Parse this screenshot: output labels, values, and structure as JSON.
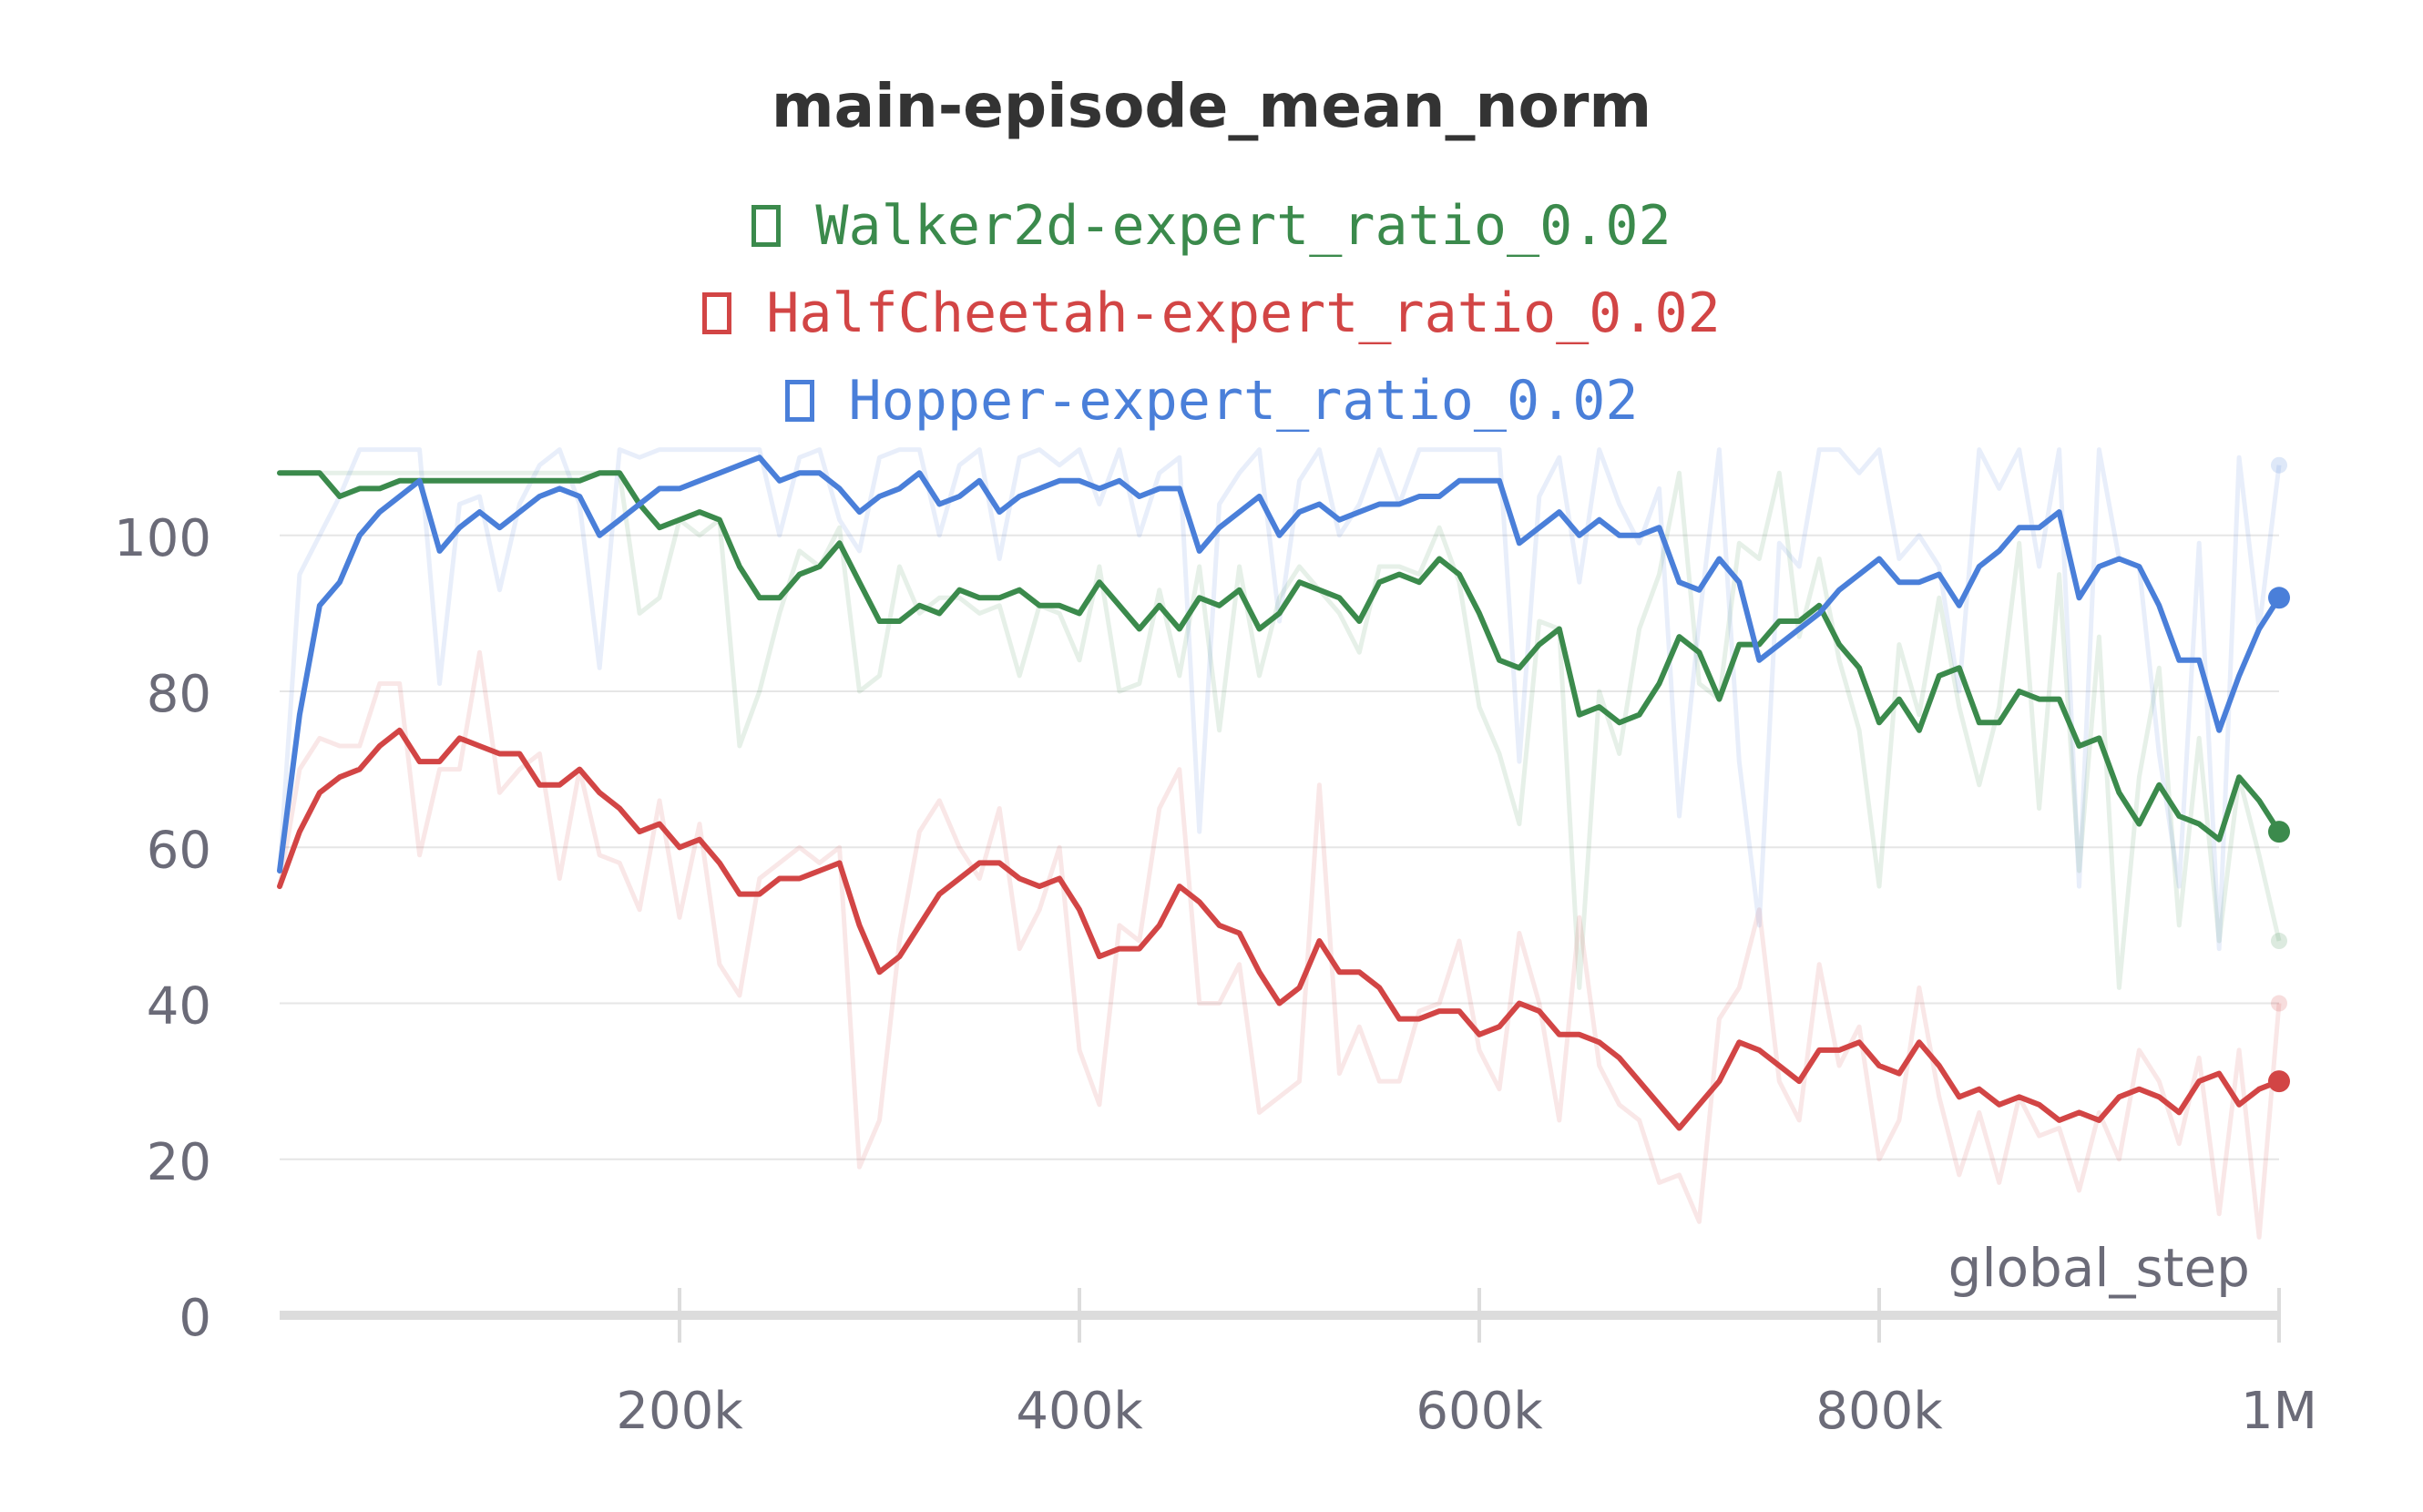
{
  "chart_data": {
    "type": "line",
    "title": "main-episode_mean_norm",
    "xlabel": "global_step",
    "ylabel": "",
    "xlim": [
      0,
      1000000
    ],
    "ylim": [
      0,
      110
    ],
    "x_ticks": [
      "200k",
      "400k",
      "600k",
      "800k",
      "1M"
    ],
    "x_tick_values": [
      200000,
      400000,
      600000,
      800000,
      1000000
    ],
    "y_ticks": [
      "0",
      "20",
      "40",
      "60",
      "80",
      "100"
    ],
    "y_tick_values": [
      0,
      20,
      40,
      60,
      80,
      100
    ],
    "grid": true,
    "legend_position": "top-center",
    "series": [
      {
        "name": "Walker2d-expert_ratio_0.02",
        "color": "#3b8a4c",
        "x": [
          0,
          10000,
          20000,
          30000,
          40000,
          50000,
          60000,
          70000,
          80000,
          90000,
          100000,
          110000,
          120000,
          130000,
          140000,
          150000,
          160000,
          170000,
          180000,
          190000,
          200000,
          210000,
          220000,
          230000,
          240000,
          250000,
          260000,
          270000,
          280000,
          290000,
          300000,
          310000,
          320000,
          330000,
          340000,
          350000,
          360000,
          370000,
          380000,
          390000,
          400000,
          410000,
          420000,
          430000,
          440000,
          450000,
          460000,
          470000,
          480000,
          490000,
          500000,
          510000,
          520000,
          530000,
          540000,
          550000,
          560000,
          570000,
          580000,
          590000,
          600000,
          610000,
          620000,
          630000,
          640000,
          650000,
          660000,
          670000,
          680000,
          690000,
          700000,
          710000,
          720000,
          730000,
          740000,
          750000,
          760000,
          770000,
          780000,
          790000,
          800000,
          810000,
          820000,
          830000,
          840000,
          850000,
          860000,
          870000,
          880000,
          890000,
          900000,
          910000,
          920000,
          930000,
          940000,
          950000,
          960000,
          970000,
          980000,
          990000,
          1000000
        ],
        "values": [
          108,
          108,
          108,
          105,
          106,
          106,
          107,
          107,
          107,
          107,
          107,
          107,
          107,
          107,
          107,
          107,
          108,
          108,
          104,
          101,
          102,
          103,
          102,
          96,
          92,
          92,
          95,
          96,
          99,
          94,
          89,
          89,
          91,
          90,
          93,
          92,
          92,
          93,
          91,
          91,
          90,
          94,
          91,
          88,
          91,
          88,
          92,
          91,
          93,
          88,
          90,
          94,
          93,
          92,
          89,
          94,
          95,
          94,
          97,
          95,
          90,
          84,
          83,
          86,
          88,
          77,
          78,
          76,
          77,
          81,
          87,
          85,
          79,
          86,
          86,
          89,
          89,
          91,
          86,
          83,
          76,
          79,
          75,
          82,
          83,
          76,
          76,
          80,
          79,
          79,
          73,
          74,
          67,
          63,
          68,
          64,
          63,
          61,
          69,
          66,
          62
        ],
        "smoothed": true,
        "raw_values": [
          108,
          108,
          108,
          108,
          108,
          108,
          108,
          108,
          108,
          108,
          108,
          108,
          108,
          108,
          108,
          108,
          108,
          108,
          90,
          92,
          102,
          100,
          102,
          73,
          80,
          90,
          98,
          96,
          101,
          80,
          82,
          96,
          90,
          92,
          92,
          90,
          91,
          82,
          91,
          90,
          84,
          96,
          80,
          81,
          93,
          82,
          96,
          75,
          96,
          82,
          92,
          96,
          93,
          90,
          85,
          96,
          96,
          95,
          101,
          94,
          78,
          72,
          63,
          89,
          88,
          42,
          80,
          72,
          88,
          95,
          108,
          81,
          79,
          99,
          97,
          108,
          87,
          97,
          84,
          75,
          55,
          86,
          77,
          92,
          78,
          68,
          78,
          99,
          65,
          95,
          57,
          87,
          42,
          69,
          83,
          50,
          74,
          48,
          69,
          59,
          48
        ]
      },
      {
        "name": "HalfCheetah-expert_ratio_0.02",
        "color": "#d24545",
        "x": [
          0,
          10000,
          20000,
          30000,
          40000,
          50000,
          60000,
          70000,
          80000,
          90000,
          100000,
          110000,
          120000,
          130000,
          140000,
          150000,
          160000,
          170000,
          180000,
          190000,
          200000,
          210000,
          220000,
          230000,
          240000,
          250000,
          260000,
          270000,
          280000,
          290000,
          300000,
          310000,
          320000,
          330000,
          340000,
          350000,
          360000,
          370000,
          380000,
          390000,
          400000,
          410000,
          420000,
          430000,
          440000,
          450000,
          460000,
          470000,
          480000,
          490000,
          500000,
          510000,
          520000,
          530000,
          540000,
          550000,
          560000,
          570000,
          580000,
          590000,
          600000,
          610000,
          620000,
          630000,
          640000,
          650000,
          660000,
          670000,
          680000,
          690000,
          700000,
          710000,
          720000,
          730000,
          740000,
          750000,
          760000,
          770000,
          780000,
          790000,
          800000,
          810000,
          820000,
          830000,
          840000,
          850000,
          860000,
          870000,
          880000,
          890000,
          900000,
          910000,
          920000,
          930000,
          940000,
          950000,
          960000,
          970000,
          980000,
          990000,
          1000000
        ],
        "values": [
          55,
          62,
          67,
          69,
          70,
          73,
          75,
          71,
          71,
          74,
          73,
          72,
          72,
          68,
          68,
          70,
          67,
          65,
          62,
          63,
          60,
          61,
          58,
          54,
          54,
          56,
          56,
          57,
          58,
          50,
          44,
          46,
          50,
          54,
          56,
          58,
          58,
          56,
          55,
          56,
          52,
          46,
          47,
          47,
          50,
          55,
          53,
          50,
          49,
          44,
          40,
          42,
          48,
          44,
          44,
          42,
          38,
          38,
          39,
          39,
          36,
          37,
          40,
          39,
          36,
          36,
          35,
          33,
          30,
          27,
          24,
          27,
          30,
          35,
          34,
          32,
          30,
          34,
          34,
          35,
          32,
          31,
          35,
          32,
          28,
          29,
          27,
          28,
          27,
          25,
          26,
          25,
          28,
          29,
          28,
          26,
          30,
          31,
          27,
          29,
          30
        ],
        "smoothed": true,
        "raw_values": [
          55,
          70,
          74,
          73,
          73,
          81,
          81,
          59,
          70,
          70,
          85,
          67,
          70,
          72,
          56,
          70,
          59,
          58,
          52,
          66,
          51,
          63,
          45,
          41,
          56,
          58,
          60,
          58,
          60,
          19,
          25,
          48,
          62,
          66,
          60,
          56,
          65,
          47,
          52,
          60,
          34,
          27,
          50,
          48,
          65,
          70,
          40,
          40,
          45,
          26,
          28,
          30,
          68,
          31,
          37,
          30,
          30,
          39,
          40,
          48,
          34,
          29,
          49,
          40,
          25,
          51,
          32,
          27,
          25,
          17,
          18,
          12,
          38,
          42,
          52,
          30,
          25,
          45,
          32,
          37,
          20,
          25,
          42,
          28,
          18,
          26,
          17,
          28,
          23,
          24,
          16,
          26,
          20,
          34,
          30,
          22,
          33,
          13,
          34,
          10,
          40
        ]
      },
      {
        "name": "Hopper-expert_ratio_0.02",
        "color": "#4a7fd9",
        "x": [
          0,
          10000,
          20000,
          30000,
          40000,
          50000,
          60000,
          70000,
          80000,
          90000,
          100000,
          110000,
          120000,
          130000,
          140000,
          150000,
          160000,
          170000,
          180000,
          190000,
          200000,
          210000,
          220000,
          230000,
          240000,
          250000,
          260000,
          270000,
          280000,
          290000,
          300000,
          310000,
          320000,
          330000,
          340000,
          350000,
          360000,
          370000,
          380000,
          390000,
          400000,
          410000,
          420000,
          430000,
          440000,
          450000,
          460000,
          470000,
          480000,
          490000,
          500000,
          510000,
          520000,
          530000,
          540000,
          550000,
          560000,
          570000,
          580000,
          590000,
          600000,
          610000,
          620000,
          630000,
          640000,
          650000,
          660000,
          670000,
          680000,
          690000,
          700000,
          710000,
          720000,
          730000,
          740000,
          750000,
          760000,
          770000,
          780000,
          790000,
          800000,
          810000,
          820000,
          830000,
          840000,
          850000,
          860000,
          870000,
          880000,
          890000,
          900000,
          910000,
          920000,
          930000,
          940000,
          950000,
          960000,
          970000,
          980000,
          990000,
          1000000
        ],
        "values": [
          57,
          77,
          91,
          94,
          100,
          103,
          105,
          107,
          98,
          101,
          103,
          101,
          103,
          105,
          106,
          105,
          100,
          102,
          104,
          106,
          106,
          107,
          108,
          109,
          110,
          107,
          108,
          108,
          106,
          103,
          105,
          106,
          108,
          104,
          105,
          107,
          103,
          105,
          106,
          107,
          107,
          106,
          107,
          105,
          106,
          106,
          98,
          101,
          103,
          105,
          100,
          103,
          104,
          102,
          103,
          104,
          104,
          105,
          105,
          107,
          107,
          107,
          99,
          101,
          103,
          100,
          102,
          100,
          100,
          101,
          94,
          93,
          97,
          94,
          84,
          86,
          88,
          90,
          93,
          95,
          97,
          94,
          94,
          95,
          91,
          96,
          98,
          101,
          101,
          103,
          92,
          96,
          97,
          96,
          91,
          84,
          84,
          75,
          82,
          88,
          92
        ],
        "smoothed": true,
        "raw_values": [
          57,
          95,
          100,
          105,
          111,
          111,
          111,
          111,
          81,
          104,
          105,
          93,
          104,
          109,
          111,
          104,
          83,
          111,
          110,
          111,
          111,
          111,
          111,
          111,
          111,
          100,
          110,
          111,
          102,
          98,
          110,
          111,
          111,
          100,
          109,
          111,
          97,
          110,
          111,
          109,
          111,
          104,
          111,
          100,
          108,
          110,
          62,
          104,
          108,
          111,
          89,
          107,
          111,
          100,
          104,
          111,
          104,
          111,
          111,
          111,
          111,
          111,
          71,
          105,
          110,
          94,
          111,
          104,
          99,
          106,
          64,
          89,
          111,
          71,
          50,
          99,
          96,
          111,
          111,
          108,
          111,
          97,
          100,
          96,
          80,
          111,
          106,
          111,
          96,
          111,
          55,
          111,
          97,
          96,
          72,
          55,
          99,
          47,
          110,
          88,
          109
        ]
      }
    ]
  }
}
